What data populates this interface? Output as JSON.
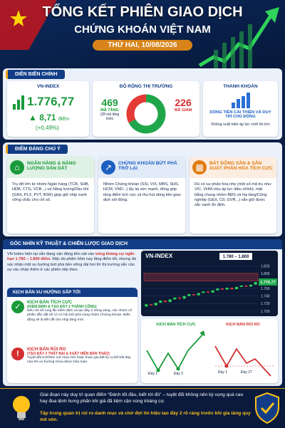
{
  "header": {
    "title": "TỔNG KẾT PHIÊN GIAO DỊCH",
    "subtitle": "CHỨNG KHOÁN VIỆT NAM",
    "date": "THỨ HAI, 10/08/2026"
  },
  "market": {
    "heading": "DIỄN BIẾN CHÍNH",
    "vnindex": {
      "label": "VN-INDEX",
      "value": "1.776,77",
      "change": "8,71",
      "unit": "điểm",
      "pct": "(+0,49%)"
    },
    "breadth": {
      "title": "ĐỘ RỘNG THỊ TRƯỜNG",
      "up": {
        "value": 469,
        "label": "MÃ TĂNG",
        "note": "(28 mã tăng trần)"
      },
      "down": {
        "value": 226,
        "label": "MÃ GIẢM"
      }
    },
    "liquidity": {
      "title": "THANH KHOẢN",
      "headline": "DÒNG TIỀN CẢI THIỆN VÀ DUY TRÌ CHỦ ĐỘNG",
      "note": "Không xuất hiện áp lực chốt lời lớn"
    }
  },
  "highlights": {
    "heading": "ĐIỂM ĐÁNG CHÚ Ý",
    "cards": [
      {
        "title": "NGÂN HÀNG & NĂNG LƯỢNG DẪN DẮT",
        "body": "Trụ đỡ lớn từ nhóm Ngân hàng (TCB, SHB, HDB, CTG, VCB...) và Năng lượng/Dầu khí (GAS, PLX, PVT, BSR) giúp giữ nhịp xanh vững chắc cho chỉ số."
      },
      {
        "title": "CHỨNG KHOÁN BỨT PHÁ TRỞ LẠI",
        "body": "Nhóm Chứng khoán (SSI, VIX, MBS, SHS, HCM, VND...) lấy lại sức mạnh, đóng góp tăng điểm tích cực và thu hút dòng tiền giao dịch sôi động."
      },
      {
        "title": "BẤT ĐỘNG SẢN & SẢN XUẤT PHÂN HÓA TÍCH CỰC",
        "body": "Dù có sự phân hóa nhẹ (một số mã trụ như VIC, VHM chịu áp lực điều chỉnh), mặt bằng chung nhóm BĐS và Hạ tầng/Công nghiệp (GEX, CII, GVR...) vẫn giữ được sắc xanh ổn định."
      }
    ]
  },
  "technical": {
    "heading": "GÓC NHÌN KỸ THUẬT & CHIẾN LƯỢC GIAO DỊCH",
    "text": [
      "VN-Index hiện tại vẫn đang vận động tiến sát vào ",
      "vùng kháng cự ngắn hạn 1.780 – 1.800 điểm",
      ". Mặc dù phiên hôm nay tăng điểm tốt, nhưng đà xác nhận một xu hướng bứt phá bền vững dài hơi thì thị trường vẫn cần sự xác nhận thêm ở các phiên tiếp theo."
    ],
    "chart": {
      "title": "VN-INDEX",
      "zone": {
        "label": "1.780 – 1.800",
        "from": 1780,
        "to": 1800
      },
      "last": "1.776,77",
      "ylim": [
        1694,
        1830
      ],
      "yticks": [
        {
          "value": 1820,
          "label": "1.820"
        },
        {
          "value": 1800,
          "label": "1.800"
        },
        {
          "value": 1780,
          "label": "1.780"
        },
        {
          "value": 1760,
          "label": "1.760"
        },
        {
          "value": 1740,
          "label": "1.740"
        },
        {
          "value": 1720,
          "label": "1.720"
        },
        {
          "value": 1700,
          "label": "1.700"
        }
      ],
      "open": [
        1712,
        1718,
        1715,
        1722,
        1728,
        1724,
        1731,
        1736,
        1733,
        1740,
        1745,
        1742,
        1748,
        1752,
        1749,
        1755,
        1760,
        1757,
        1762,
        1758,
        1764,
        1768,
        1765,
        1770
      ],
      "close": [
        1718,
        1715,
        1722,
        1728,
        1724,
        1731,
        1736,
        1733,
        1740,
        1745,
        1742,
        1748,
        1752,
        1749,
        1755,
        1760,
        1757,
        1762,
        1758,
        1764,
        1768,
        1765,
        1770,
        1777
      ]
    },
    "scenarios": {
      "heading": "KỊCH BẢN XU HƯỚNG SẮP TỚI",
      "positive": {
        "title": "KỊCH BẢN TÍCH CỰC",
        "subtitle": "(KIỂM ĐỊNH & TẠO ĐÁY 2 THÀNH CÔNG)",
        "body": "Nếu chỉ số rung lắc kiểm định và tạo đáy 2 vững vàng, các nhóm cổ phiếu dẫn dắt sẽ có cơ hội bứt phá cùng nhóm Chứng khoán. Biến động sẽ là tiền đề cho nhịp tăng mới."
      },
      "negative": {
        "title": "KỊCH BẢN RỦI RO",
        "subtitle": "(TẠO ĐÁY 2 THẤT BẠI & XUẤT HIỆN BÁN THÁO)",
        "body": "Tuyệt đối KHÔNG mở mua mới hoặc tham gia bất kỳ vị thế bắt đáy nào khi xu hướng chưa được bảo toàn."
      }
    },
    "mini": {
      "positive": {
        "title": "KỊCH BẢN TÍCH CỰC",
        "low1": "Đáy 1",
        "low2": "Đáy 2"
      },
      "negative": {
        "title": "KỊCH BẢN RỦI RO",
        "low1": "Đáy 1",
        "low2": "Đáy 2?"
      }
    }
  },
  "footer": {
    "line1": "Giai đoạn này duy trì quan điểm “Đánh tốt đâu, biết tới đó” – tuyệt đối không nên kỳ vọng quá cao hay đua lệnh hưng phấn khi giá đã tiệm cận vùng kháng cự.",
    "line2": "Tập trung quản trị rủi ro danh mục và chờ đợi tín hiệu tạo đáy 2 rõ ràng trước khi gia tăng quy mô vốn."
  }
}
